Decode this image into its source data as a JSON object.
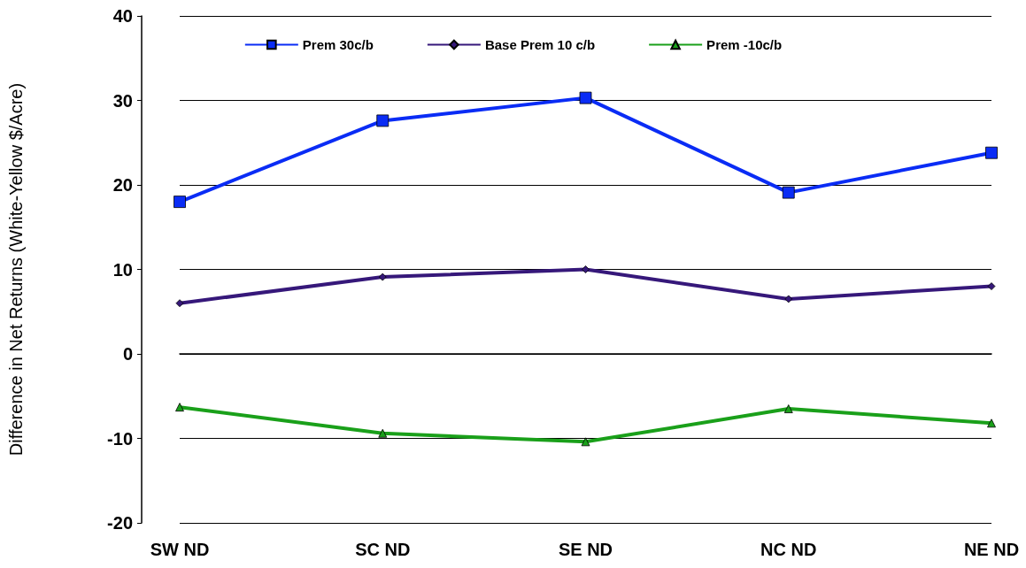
{
  "chart_data": {
    "type": "line",
    "ylabel": "Difference in Net Returns (White-Yellow $/Acre)",
    "categories": [
      "SW ND",
      "SC ND",
      "SE ND",
      "NC ND",
      "NE ND"
    ],
    "series": [
      {
        "name": "Prem 30c/b",
        "color": "#0a2cf5",
        "marker": "square",
        "values": [
          18.0,
          27.6,
          30.3,
          19.1,
          23.8
        ]
      },
      {
        "name": "Base Prem 10 c/b",
        "color": "#36187a",
        "marker": "diamond",
        "values": [
          6.0,
          9.1,
          10.0,
          6.5,
          8.0
        ]
      },
      {
        "name": "Prem -10c/b",
        "color": "#1aa01a",
        "marker": "triangle",
        "values": [
          -6.3,
          -9.4,
          -10.4,
          -6.5,
          -8.2
        ]
      }
    ],
    "ylim": [
      -20,
      40
    ],
    "yticks": [
      -20,
      -10,
      0,
      10,
      20,
      30,
      40
    ],
    "grid": "y",
    "legend": "top",
    "line_style": "solid"
  }
}
